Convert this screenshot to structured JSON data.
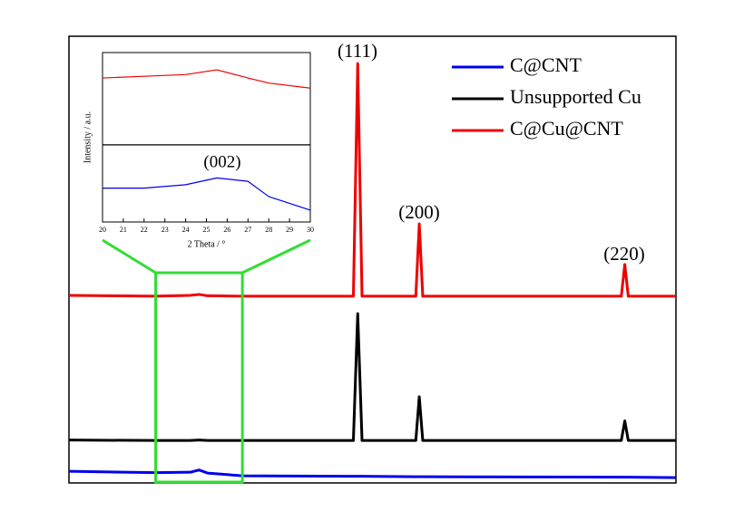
{
  "chart_data": [
    {
      "type": "line",
      "x": [
        10,
        20,
        24,
        25,
        26,
        30,
        42.8,
        43.3,
        43.8,
        50,
        50.4,
        50.8,
        73.7,
        74.1,
        74.5,
        80
      ],
      "xlim": [
        10,
        80
      ],
      "ylim": [
        0,
        100
      ],
      "series": [
        {
          "name": "C@CNT",
          "color": "#0000ee",
          "values": [
            2.6,
            2.3,
            2.4,
            2.9,
            2.2,
            1.6,
            1.5,
            1.5,
            1.5,
            1.4,
            1.4,
            1.4,
            1.3,
            1.3,
            1.3,
            1.2
          ]
        },
        {
          "name": "Unsupported Cu",
          "color": "#000000",
          "values": [
            9.6,
            9.5,
            9.5,
            9.6,
            9.5,
            9.5,
            9.5,
            37.9,
            9.5,
            9.5,
            19.3,
            9.5,
            9.5,
            13.9,
            9.5,
            9.5
          ]
        },
        {
          "name": "C@Cu@CNT",
          "color": "#ee0000",
          "values": [
            42,
            41.8,
            42,
            42.2,
            41.9,
            41.8,
            41.8,
            93.9,
            41.8,
            41.8,
            58,
            41.8,
            41.8,
            48.9,
            41.8,
            41.8
          ]
        }
      ],
      "annotations": [
        "(111)",
        "(200)",
        "(220)"
      ],
      "legend": "upper right"
    },
    {
      "type": "line",
      "x": [
        20,
        22,
        24,
        25.5,
        27,
        28,
        30
      ],
      "xlim": [
        20,
        30
      ],
      "ylim": [
        0,
        100
      ],
      "xticks": [
        20,
        21,
        22,
        23,
        24,
        25,
        26,
        27,
        28,
        29,
        30
      ],
      "xlabel": "2 Theta / °",
      "ylabel": "Intensity / a.u.",
      "series": [
        {
          "color": "#ee0000",
          "values": [
            85,
            86,
            87,
            89.8,
            85,
            82,
            79
          ]
        },
        {
          "color": "#000000",
          "values": [
            45.5,
            45.5,
            45.5,
            45.5,
            45.5,
            45.5,
            45.5
          ]
        },
        {
          "color": "#0000ee",
          "values": [
            20,
            20,
            22,
            26,
            24,
            15,
            7
          ]
        }
      ],
      "annotations": [
        "(002)"
      ]
    }
  ]
}
